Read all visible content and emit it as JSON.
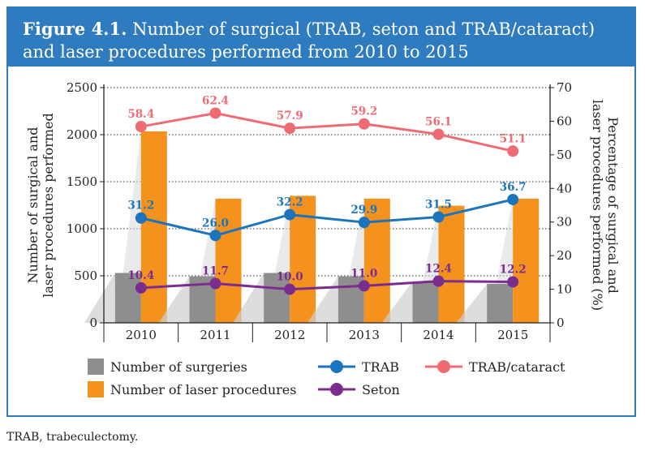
{
  "figure": {
    "label": "Figure 4.1.",
    "title": "Number of surgical (TRAB, seton and TRAB/cataract) and laser procedures performed from 2010 to 2015"
  },
  "footnote": "TRAB, trabeculectomy.",
  "colors": {
    "frame": "#2e7bbf",
    "surgeries": "#8e8e8e",
    "laser": "#f5921e",
    "trab": "#1c75bc",
    "trab_cataract": "#ef6b73",
    "seton": "#7b2d8e"
  },
  "chart_data": {
    "type": "bar",
    "categories": [
      "2010",
      "2011",
      "2012",
      "2013",
      "2014",
      "2015"
    ],
    "ylabel_left": "Number of surgical and laser procedures performed",
    "ylabel_right": "Percentage of surgical and laser procedures performed (%)",
    "ylim_left": [
      0,
      2500
    ],
    "yticks_left": [
      "0",
      "500",
      "1000",
      "1500",
      "2000",
      "2500"
    ],
    "ylim_right": [
      0,
      70
    ],
    "yticks_right": [
      "0",
      "10",
      "20",
      "30",
      "40",
      "50",
      "60",
      "70"
    ],
    "grid": "dotted horizontal",
    "legend_position": "bottom",
    "bar_series": [
      {
        "name": "Number of surgeries",
        "axis": "left",
        "values": [
          530,
          495,
          530,
          495,
          440,
          415
        ]
      },
      {
        "name": "Number of laser procedures",
        "axis": "left",
        "values": [
          2035,
          1320,
          1350,
          1320,
          1245,
          1320
        ]
      }
    ],
    "line_series": [
      {
        "name": "TRAB",
        "axis": "right",
        "values": [
          31.2,
          26.0,
          32.2,
          29.9,
          31.5,
          36.7
        ],
        "labels": [
          "31.2",
          "26.0",
          "32.2",
          "29.9",
          "31.5",
          "36.7"
        ]
      },
      {
        "name": "TRAB/cataract",
        "axis": "right",
        "values": [
          58.4,
          62.4,
          57.9,
          59.2,
          56.1,
          51.1
        ],
        "labels": [
          "58.4",
          "62.4",
          "57.9",
          "59.2",
          "56.1",
          "51.1"
        ]
      },
      {
        "name": "Seton",
        "axis": "right",
        "values": [
          10.4,
          11.7,
          10.0,
          11.0,
          12.4,
          12.2
        ],
        "labels": [
          "10.4",
          "11.7",
          "10.0",
          "11.0",
          "12.4",
          "12.2"
        ]
      }
    ]
  }
}
